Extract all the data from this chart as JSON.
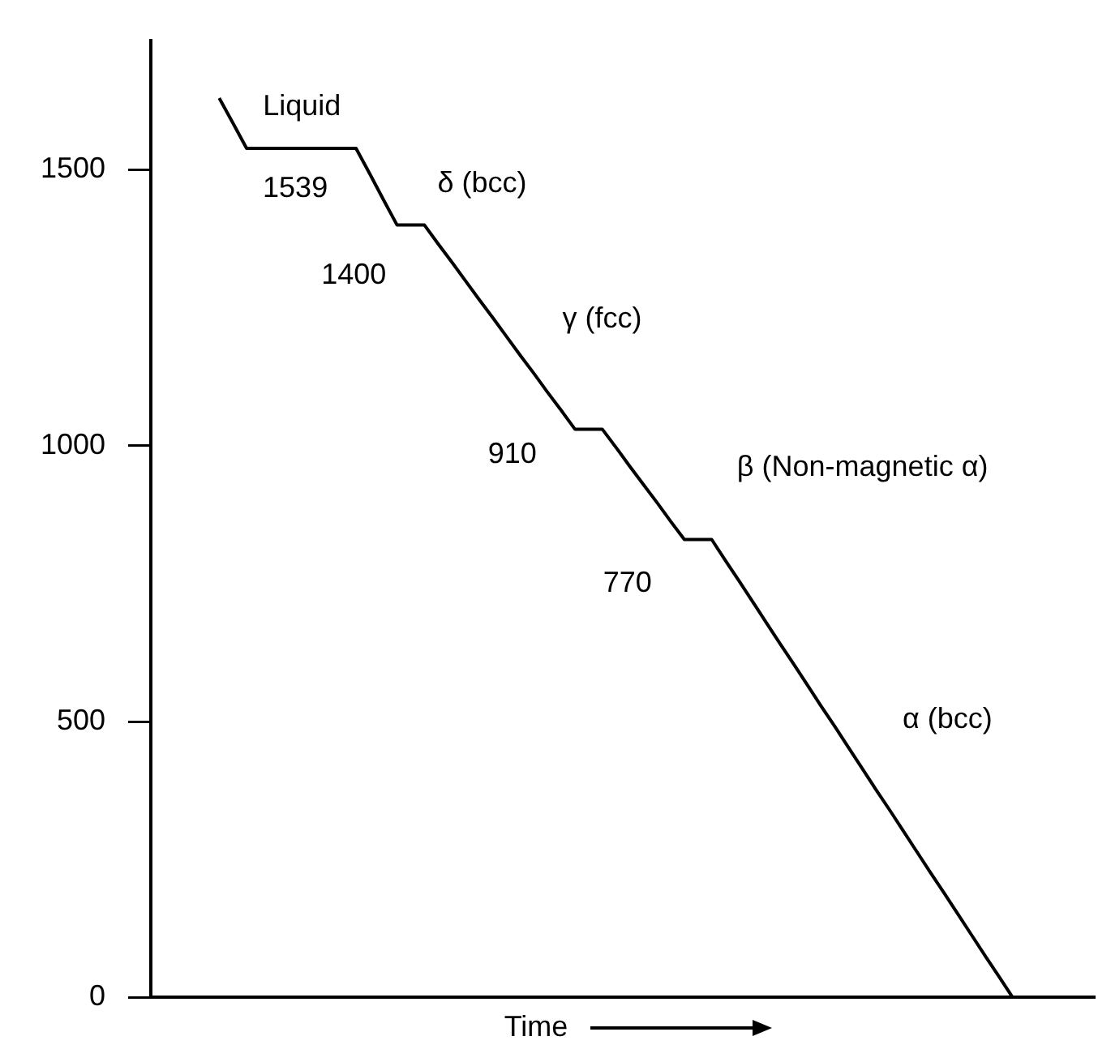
{
  "chart_data": {
    "type": "line",
    "xlabel": "Time",
    "categories": [
      null,
      null,
      null,
      null,
      null,
      null,
      null,
      null,
      null,
      null,
      null,
      null,
      null,
      null,
      null,
      null,
      null,
      null,
      null,
      null,
      null,
      null,
      null,
      null,
      null,
      null,
      null,
      null,
      null,
      null,
      null,
      null,
      null,
      null,
      null,
      null,
      null,
      null,
      null,
      null,
      null,
      null,
      null,
      null,
      null,
      null,
      null,
      null,
      null,
      null,
      null,
      null,
      null,
      null,
      null,
      null,
      null,
      null,
      null,
      null,
      null,
      null,
      null,
      null,
      null,
      null,
      null,
      null,
      null,
      null
    ],
    "series": [
      {
        "color": "#000000",
        "values": [
          null,
          null,
          null,
          null,
          null,
          1630,
          1585,
          1539,
          1539,
          1539,
          1539,
          1539,
          1539,
          1539,
          1539,
          1539,
          1493,
          1446,
          1400,
          1400,
          1400,
          1366,
          1333,
          1299,
          1265,
          1232,
          1198,
          1164,
          1131,
          1097,
          1064,
          1030,
          1030,
          1030,
          997,
          963,
          930,
          897,
          863,
          830,
          830,
          830,
          792,
          755,
          717,
          679,
          641,
          604,
          566,
          528,
          491,
          453,
          415,
          377,
          340,
          302,
          264,
          226,
          189,
          151,
          113,
          75,
          38,
          0,
          null,
          null,
          null,
          null,
          null,
          null
        ]
      }
    ],
    "ylim": [
      0,
      1735
    ],
    "yticks": [
      0,
      500,
      1000,
      1500
    ],
    "tick_labels": "y",
    "grid": false,
    "legend": false,
    "marker": "none",
    "line_style": "solid",
    "annotations": [
      "Liquid",
      "1539",
      "δ (bcc)",
      "1400",
      "γ (fcc)",
      "910",
      "β (Non-magnetic α)",
      "770",
      "α (bcc)"
    ]
  }
}
